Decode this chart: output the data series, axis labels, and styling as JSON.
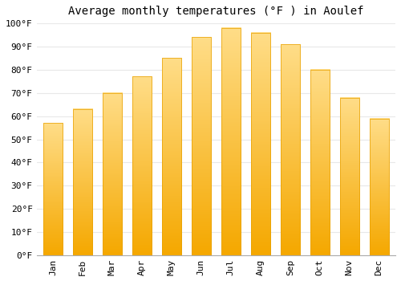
{
  "title": "Average monthly temperatures (°F ) in Aoulef",
  "months": [
    "Jan",
    "Feb",
    "Mar",
    "Apr",
    "May",
    "Jun",
    "Jul",
    "Aug",
    "Sep",
    "Oct",
    "Nov",
    "Dec"
  ],
  "values": [
    57,
    63,
    70,
    77,
    85,
    94,
    98,
    96,
    91,
    80,
    68,
    59
  ],
  "bar_color_bottom": "#F5A800",
  "bar_color_top": "#FFDD88",
  "bar_edge_color": "#E8A000",
  "ylim": [
    0,
    100
  ],
  "ytick_step": 10,
  "background_color": "#FFFFFF",
  "plot_bg_color": "#FFFFFF",
  "grid_color": "#E8E8E8",
  "title_fontsize": 10,
  "tick_fontsize": 8
}
